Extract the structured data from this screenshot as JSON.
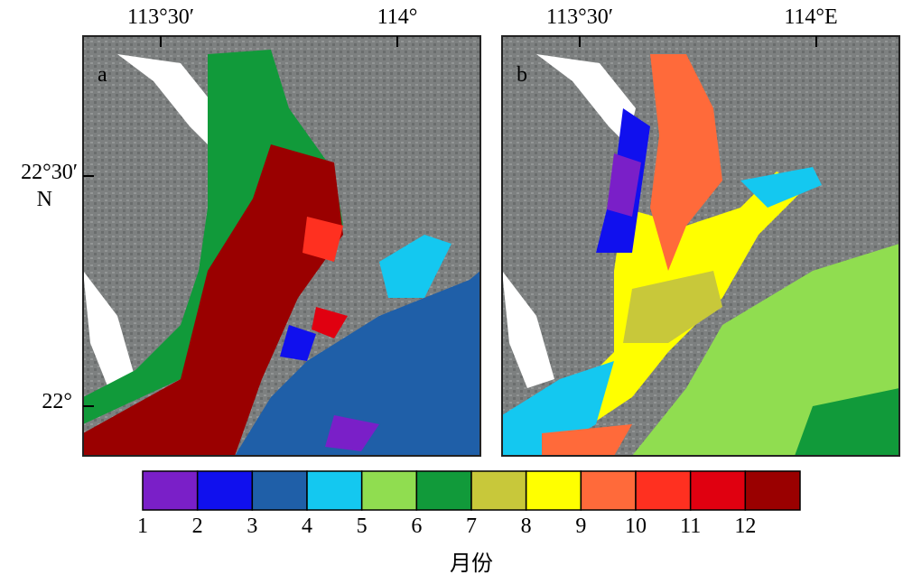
{
  "panels": [
    {
      "label": "a",
      "x_labels": [
        "113°30′",
        "114°"
      ]
    },
    {
      "label": "b",
      "x_labels": [
        "113°30′",
        "114°E"
      ]
    }
  ],
  "y_labels": [
    "22°30′",
    "N",
    "22°"
  ],
  "colorbar": {
    "ticks": [
      1,
      2,
      3,
      4,
      5,
      6,
      7,
      8,
      9,
      10,
      11,
      12
    ],
    "colors": [
      "#7a1fc8",
      "#1010ee",
      "#1f5fa8",
      "#14c8f0",
      "#90dd50",
      "#119a3a",
      "#c8c83a",
      "#ffff00",
      "#ff6a3a",
      "#ff3020",
      "#e00010",
      "#9a0000"
    ],
    "title": "月份"
  }
}
